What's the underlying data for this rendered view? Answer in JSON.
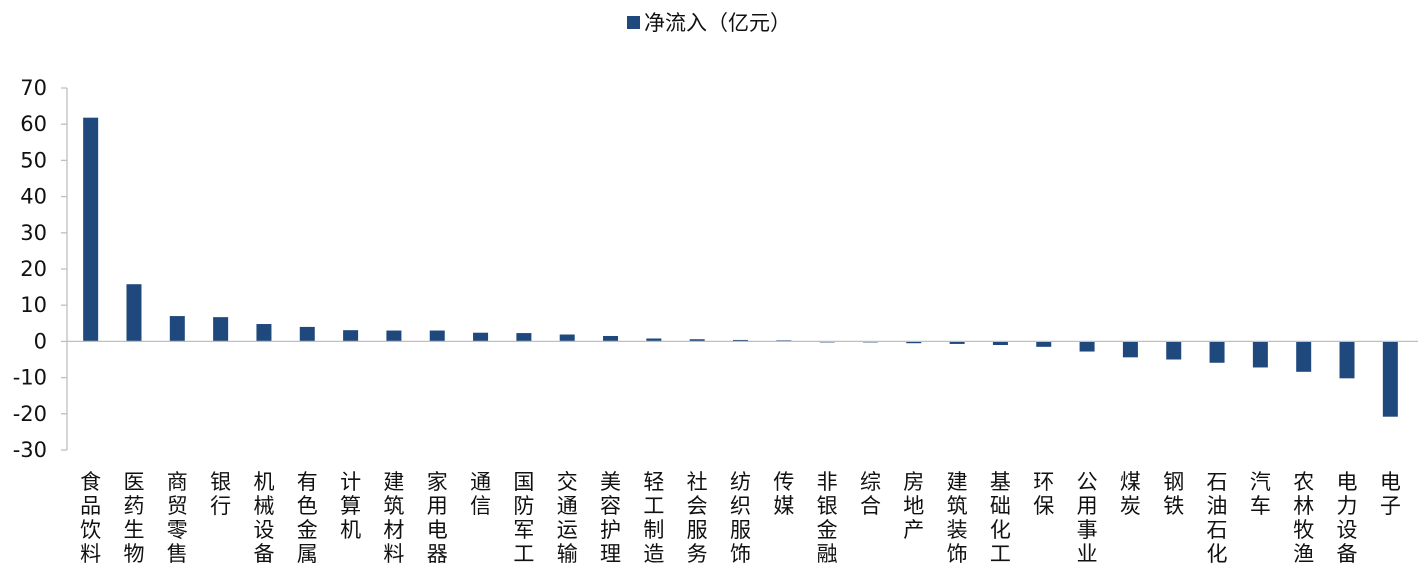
{
  "chart_data": {
    "type": "bar",
    "legend_position": "top-center",
    "bar_color": "#1f497d",
    "series": [
      {
        "name": "净流入（亿元）",
        "values": [
          61.8,
          15.8,
          7.0,
          6.7,
          4.8,
          4.0,
          3.1,
          3.0,
          3.0,
          2.4,
          2.3,
          1.9,
          1.5,
          0.8,
          0.6,
          0.4,
          0.3,
          -0.1,
          -0.2,
          -0.5,
          -0.7,
          -1.0,
          -1.5,
          -2.8,
          -4.4,
          -5.0,
          -5.9,
          -7.2,
          -8.4,
          -10.2,
          -20.8
        ]
      }
    ],
    "categories": [
      "食品饮料",
      "医药生物",
      "商贸零售",
      "银行",
      "机械设备",
      "有色金属",
      "计算机",
      "建筑材料",
      "家用电器",
      "通信",
      "国防军工",
      "交通运输",
      "美容护理",
      "轻工制造",
      "社会服务",
      "纺织服饰",
      "传媒",
      "非银金融",
      "综合",
      "房地产",
      "建筑装饰",
      "基础化工",
      "环保",
      "公用事业",
      "煤炭",
      "钢铁",
      "石油石化",
      "汽车",
      "农林牧渔",
      "电力设备",
      "电子"
    ],
    "yticks": [
      "70",
      "60",
      "50",
      "40",
      "30",
      "20",
      "10",
      "0",
      "-10",
      "-20",
      "-30"
    ],
    "ylim": [
      -30,
      70
    ],
    "grid": false,
    "title": "",
    "xlabel": "",
    "ylabel": ""
  }
}
